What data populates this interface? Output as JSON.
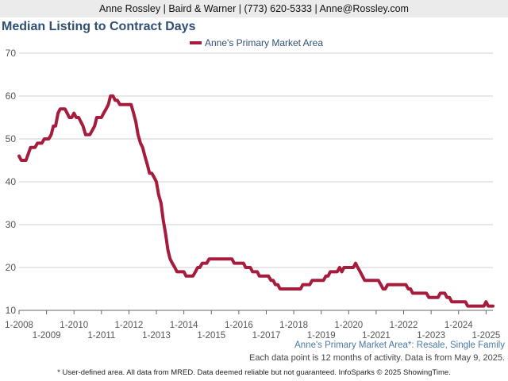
{
  "header": {
    "contact": "Anne Rossley | Baird & Warner | (773) 620-5333 | Anne@Rossley.com"
  },
  "chart_data": {
    "type": "line",
    "title": "Median Listing to Contract Days",
    "legend": "top-center",
    "grid": true,
    "ylim": [
      10,
      70
    ],
    "yticks": [
      10,
      20,
      30,
      40,
      50,
      60,
      70
    ],
    "xlim": [
      2008.0,
      2025.25
    ],
    "xticks_upper": [
      "1-2008",
      "1-2010",
      "1-2012",
      "1-2014",
      "1-2016",
      "1-2018",
      "1-2020",
      "1-2022",
      "1-2024"
    ],
    "xticks_lower": [
      "1-2009",
      "1-2011",
      "1-2013",
      "1-2015",
      "1-2017",
      "1-2019",
      "1-2021",
      "1-2023",
      "1-2025"
    ],
    "line_color": "#a61c3c",
    "series": [
      {
        "name": "Anne's Primary Market Area",
        "points": [
          [
            2008.0,
            46
          ],
          [
            2008.08,
            45
          ],
          [
            2008.25,
            45
          ],
          [
            2008.42,
            48
          ],
          [
            2008.58,
            48
          ],
          [
            2008.67,
            49
          ],
          [
            2008.83,
            49
          ],
          [
            2008.92,
            50
          ],
          [
            2009.08,
            50
          ],
          [
            2009.17,
            51
          ],
          [
            2009.25,
            53
          ],
          [
            2009.33,
            53
          ],
          [
            2009.42,
            56
          ],
          [
            2009.5,
            57
          ],
          [
            2009.67,
            57
          ],
          [
            2009.75,
            56
          ],
          [
            2009.83,
            55
          ],
          [
            2009.92,
            55
          ],
          [
            2010.0,
            56
          ],
          [
            2010.08,
            55
          ],
          [
            2010.17,
            55
          ],
          [
            2010.25,
            54
          ],
          [
            2010.33,
            53
          ],
          [
            2010.42,
            51
          ],
          [
            2010.58,
            51
          ],
          [
            2010.75,
            53
          ],
          [
            2010.83,
            55
          ],
          [
            2011.0,
            55
          ],
          [
            2011.08,
            56
          ],
          [
            2011.17,
            57
          ],
          [
            2011.25,
            58
          ],
          [
            2011.33,
            60
          ],
          [
            2011.42,
            60
          ],
          [
            2011.5,
            59
          ],
          [
            2011.58,
            59
          ],
          [
            2011.67,
            58
          ],
          [
            2011.83,
            58
          ],
          [
            2012.08,
            58
          ],
          [
            2012.17,
            56
          ],
          [
            2012.25,
            54
          ],
          [
            2012.33,
            51
          ],
          [
            2012.42,
            49
          ],
          [
            2012.5,
            48
          ],
          [
            2012.58,
            46
          ],
          [
            2012.67,
            44
          ],
          [
            2012.75,
            42
          ],
          [
            2012.83,
            42
          ],
          [
            2012.92,
            41
          ],
          [
            2013.0,
            40
          ],
          [
            2013.08,
            37
          ],
          [
            2013.17,
            35
          ],
          [
            2013.25,
            31
          ],
          [
            2013.33,
            28
          ],
          [
            2013.42,
            24
          ],
          [
            2013.5,
            22
          ],
          [
            2013.58,
            21
          ],
          [
            2013.67,
            20
          ],
          [
            2013.75,
            19
          ],
          [
            2014.0,
            19
          ],
          [
            2014.08,
            18
          ],
          [
            2014.33,
            18
          ],
          [
            2014.42,
            19
          ],
          [
            2014.5,
            20
          ],
          [
            2014.58,
            20
          ],
          [
            2014.67,
            21
          ],
          [
            2014.83,
            21
          ],
          [
            2014.92,
            22
          ],
          [
            2015.75,
            22
          ],
          [
            2015.83,
            21
          ],
          [
            2016.17,
            21
          ],
          [
            2016.25,
            20
          ],
          [
            2016.42,
            20
          ],
          [
            2016.5,
            19
          ],
          [
            2016.67,
            19
          ],
          [
            2016.75,
            18
          ],
          [
            2017.08,
            18
          ],
          [
            2017.17,
            17
          ],
          [
            2017.25,
            17
          ],
          [
            2017.33,
            16
          ],
          [
            2017.42,
            16
          ],
          [
            2017.5,
            15
          ],
          [
            2018.25,
            15
          ],
          [
            2018.33,
            16
          ],
          [
            2018.58,
            16
          ],
          [
            2018.67,
            17
          ],
          [
            2019.08,
            17
          ],
          [
            2019.17,
            18
          ],
          [
            2019.25,
            18
          ],
          [
            2019.33,
            19
          ],
          [
            2019.58,
            19
          ],
          [
            2019.67,
            20
          ],
          [
            2019.75,
            19
          ],
          [
            2019.83,
            20
          ],
          [
            2020.17,
            20
          ],
          [
            2020.25,
            21
          ],
          [
            2020.33,
            20
          ],
          [
            2020.42,
            19
          ],
          [
            2020.58,
            17
          ],
          [
            2021.08,
            17
          ],
          [
            2021.17,
            16
          ],
          [
            2021.25,
            15
          ],
          [
            2021.33,
            15
          ],
          [
            2021.42,
            16
          ],
          [
            2022.08,
            16
          ],
          [
            2022.17,
            15
          ],
          [
            2022.25,
            15
          ],
          [
            2022.33,
            14
          ],
          [
            2022.83,
            14
          ],
          [
            2022.92,
            13
          ],
          [
            2023.25,
            13
          ],
          [
            2023.33,
            14
          ],
          [
            2023.5,
            14
          ],
          [
            2023.58,
            13
          ],
          [
            2023.67,
            13
          ],
          [
            2023.75,
            12
          ],
          [
            2024.25,
            12
          ],
          [
            2024.33,
            11
          ],
          [
            2024.92,
            11
          ],
          [
            2025.0,
            12
          ],
          [
            2025.08,
            11
          ],
          [
            2025.25,
            11
          ]
        ]
      }
    ],
    "subtitle_area": "Anne's Primary Market Area*: Resale, Single Family",
    "note": "Each data point is 12 months of activity. Data is from May 9, 2025.",
    "footer": "* User-defined area. All data from MRED. Data deemed reliable but not guaranteed. InfoSparks © 2025 ShowingTime."
  }
}
